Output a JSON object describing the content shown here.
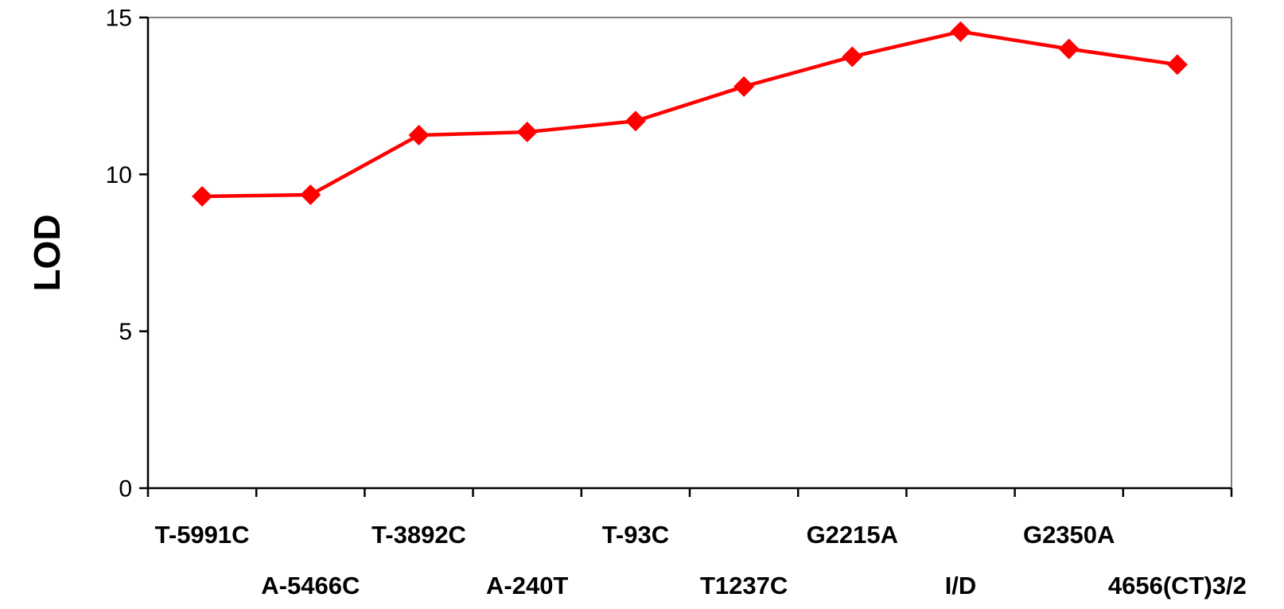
{
  "chart_data": {
    "type": "line",
    "title": "",
    "xlabel": "",
    "ylabel": "LOD",
    "ylim": [
      0,
      15
    ],
    "yticks": [
      0,
      5,
      10,
      15
    ],
    "grid": false,
    "legend": "none",
    "categories": [
      "T-5991C",
      "A-5466C",
      "T-3892C",
      "A-240T",
      "T-93C",
      "T1237C",
      "G2215A",
      "I/D",
      "G2350A",
      "4656(CT)3/2"
    ],
    "series": [
      {
        "color": "#ff0000",
        "marker": "diamond",
        "values": [
          9.3,
          9.35,
          11.25,
          11.35,
          11.7,
          12.8,
          13.75,
          14.55,
          14.0,
          13.5
        ]
      }
    ]
  }
}
